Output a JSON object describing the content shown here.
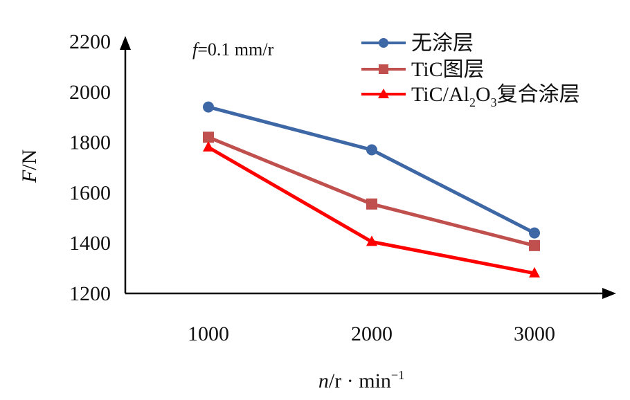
{
  "chart_data": {
    "type": "line",
    "categories": [
      "1000",
      "2000",
      "3000"
    ],
    "xlabel": {
      "var": "n",
      "unit": "/r · min",
      "sup": "−1"
    },
    "ylabel": {
      "var": "F",
      "unit": "/N"
    },
    "ylim": [
      1200,
      2200
    ],
    "yticks": [
      "2200",
      "2000",
      "1800",
      "1600",
      "1400",
      "1200"
    ],
    "annotation": {
      "var": "f",
      "rest": "=0.1 mm/r"
    },
    "grid": false,
    "legend_position": "top-right",
    "series": [
      {
        "name": "无涂层",
        "color": "#3E67A5",
        "marker": "circle",
        "values": [
          1940,
          1770,
          1440
        ]
      },
      {
        "name": "TiC图层",
        "color": "#C0504D",
        "marker": "square",
        "values": [
          1820,
          1555,
          1390
        ]
      },
      {
        "name_parts": {
          "a": "TiC/Al",
          "b": "2",
          "c": "O",
          "d": "3",
          "e": "复合涂层"
        },
        "color": "#FF0000",
        "marker": "triangle",
        "values": [
          1780,
          1405,
          1280
        ]
      }
    ]
  }
}
